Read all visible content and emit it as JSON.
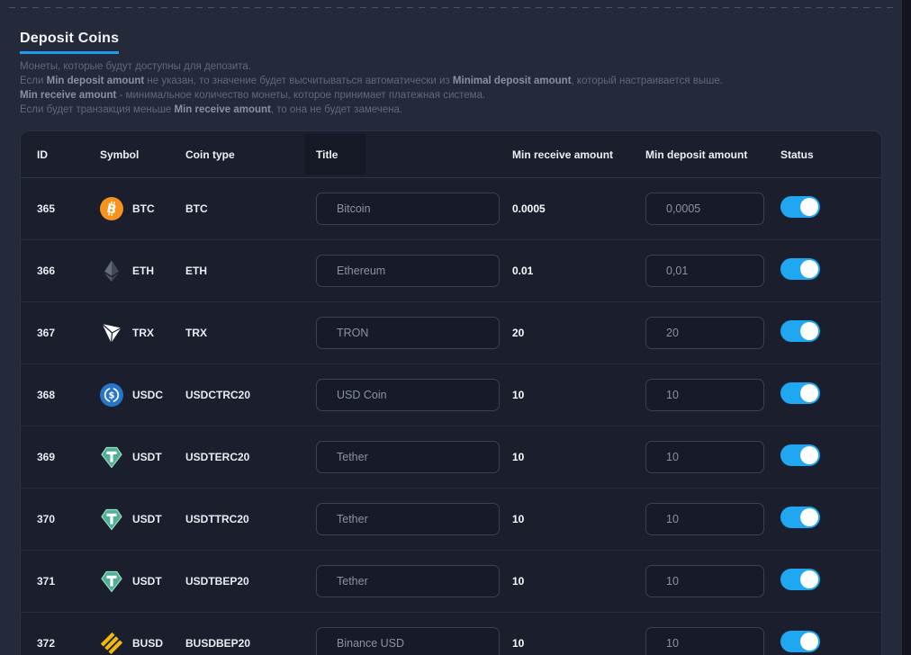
{
  "page": {
    "title": "Deposit Coins",
    "description_lines": [
      [
        {
          "t": "Монеты, которые будут доступны для депозита."
        }
      ],
      [
        {
          "t": "Если "
        },
        {
          "t": "Min deposit amount",
          "b": true
        },
        {
          "t": " не указан, то значение будет высчитываться автоматически из "
        },
        {
          "t": "Minimal deposit amount",
          "b": true
        },
        {
          "t": ", который настраивается выше."
        }
      ],
      [
        {
          "t": "Min receive amount",
          "b": true
        },
        {
          "t": " - минимальное количество монеты, которое принимает платежная система."
        }
      ],
      [
        {
          "t": "Если будет транзакция меньше "
        },
        {
          "t": "Min receive amount",
          "b": true
        },
        {
          "t": ", то она не будет замечена."
        }
      ]
    ]
  },
  "table": {
    "columns": {
      "id": "ID",
      "symbol": "Symbol",
      "coin_type": "Coin type",
      "title": "Title",
      "min_receive": "Min receive amount",
      "min_deposit": "Min deposit amount",
      "status": "Status"
    },
    "rows": [
      {
        "id": "365",
        "symbol": "BTC",
        "icon": "btc-icon",
        "coin_type": "BTC",
        "title_value": "Bitcoin",
        "min_receive": "0.0005",
        "min_deposit_value": "0,0005",
        "status_on": true
      },
      {
        "id": "366",
        "symbol": "ETH",
        "icon": "eth-icon",
        "coin_type": "ETH",
        "title_value": "Ethereum",
        "min_receive": "0.01",
        "min_deposit_value": "0,01",
        "status_on": true
      },
      {
        "id": "367",
        "symbol": "TRX",
        "icon": "trx-icon",
        "coin_type": "TRX",
        "title_value": "TRON",
        "min_receive": "20",
        "min_deposit_value": "20",
        "status_on": true
      },
      {
        "id": "368",
        "symbol": "USDC",
        "icon": "usdc-icon",
        "coin_type": "USDCTRC20",
        "title_value": "USD Coin",
        "min_receive": "10",
        "min_deposit_value": "10",
        "status_on": true
      },
      {
        "id": "369",
        "symbol": "USDT",
        "icon": "usdt-icon",
        "coin_type": "USDTERC20",
        "title_value": "Tether",
        "min_receive": "10",
        "min_deposit_value": "10",
        "status_on": true
      },
      {
        "id": "370",
        "symbol": "USDT",
        "icon": "usdt-icon",
        "coin_type": "USDTTRC20",
        "title_value": "Tether",
        "min_receive": "10",
        "min_deposit_value": "10",
        "status_on": true
      },
      {
        "id": "371",
        "symbol": "USDT",
        "icon": "usdt-icon",
        "coin_type": "USDTBEP20",
        "title_value": "Tether",
        "min_receive": "10",
        "min_deposit_value": "10",
        "status_on": true
      },
      {
        "id": "372",
        "symbol": "BUSD",
        "icon": "busd-icon",
        "coin_type": "BUSDBEP20",
        "title_value": "Binance USD",
        "min_receive": "10",
        "min_deposit_value": "10",
        "status_on": true
      }
    ]
  },
  "colors": {
    "accent": "#1e9cf0",
    "toggle_on": "#1fa7f2",
    "page_bg": "#252a3b",
    "panel_bg": "#1a1e2d",
    "btc": "#f7931a",
    "usdc": "#2775ca",
    "usdt": "#4fb095",
    "busd": "#f0b90b"
  }
}
